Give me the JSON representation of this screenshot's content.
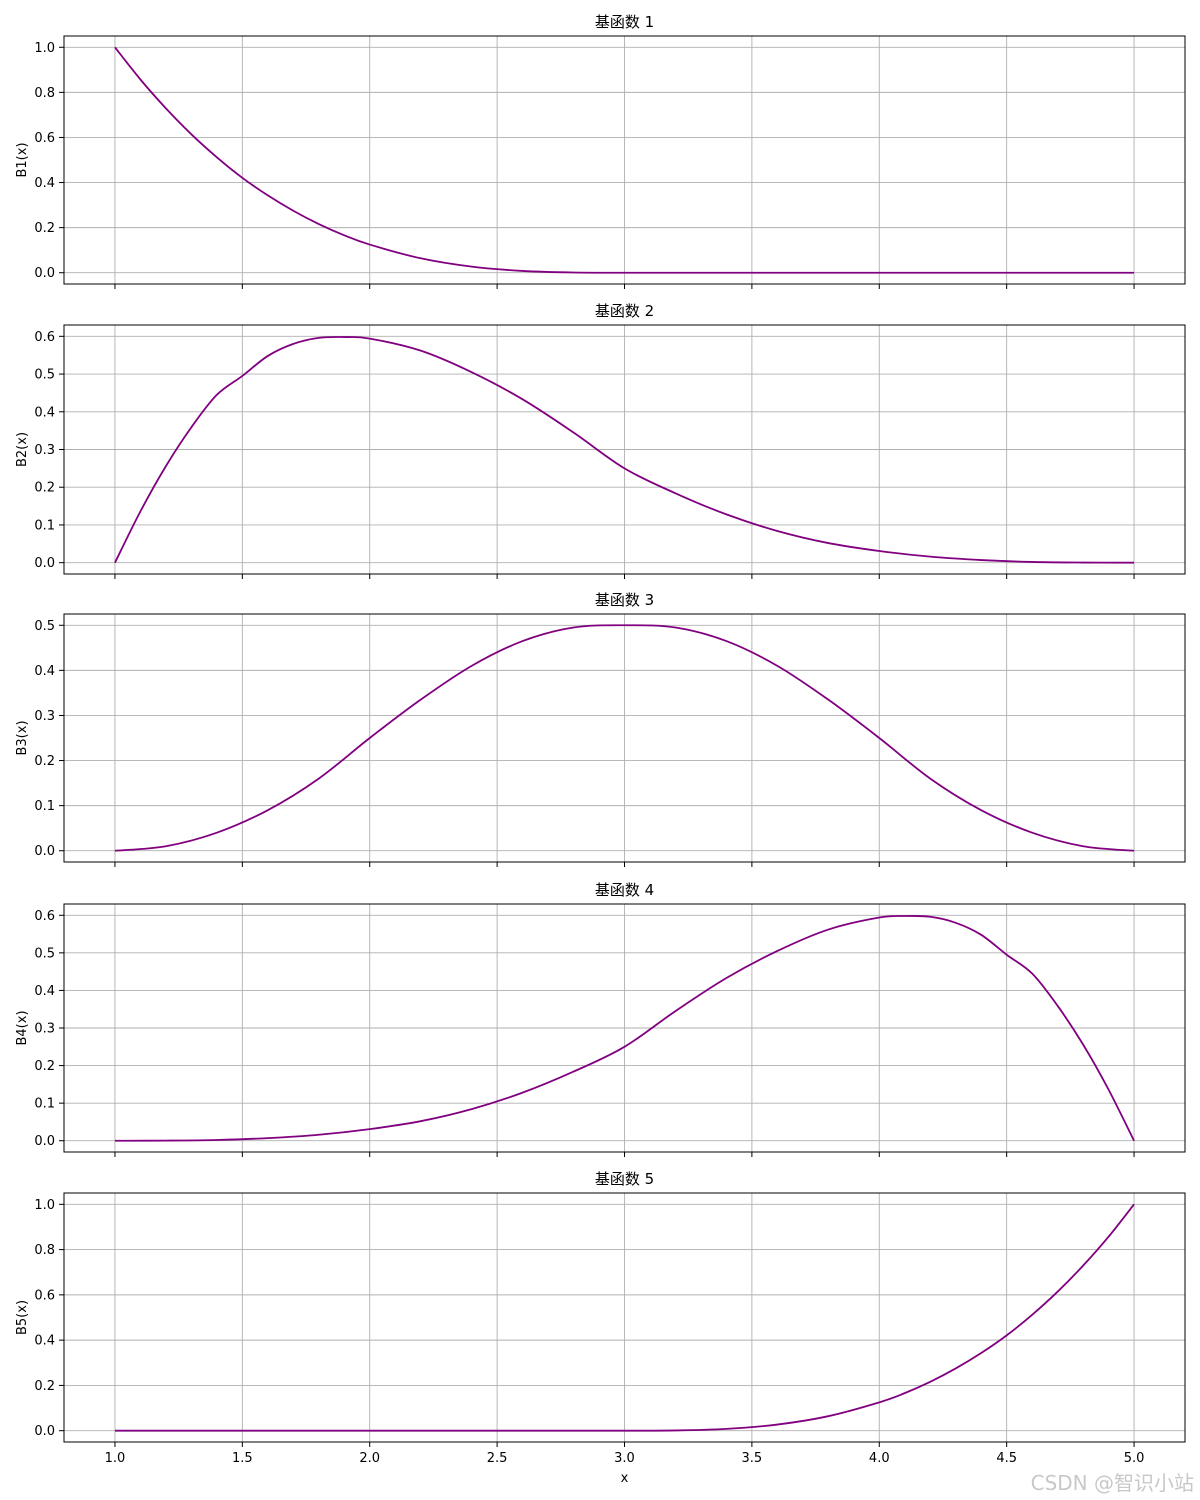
{
  "figure": {
    "xlabel": "x",
    "watermark": "CSDN @智识小站",
    "line_color": "#800080",
    "grid_color": "#b0b0b0"
  },
  "chart_data": [
    {
      "type": "line",
      "title": "基函数 1",
      "xlabel": "",
      "ylabel": "B1(x)",
      "xlim": [
        0.8,
        5.2
      ],
      "ylim": [
        -0.05,
        1.05
      ],
      "xticks": [
        1.0,
        1.5,
        2.0,
        2.5,
        3.0,
        3.5,
        4.0,
        4.5,
        5.0
      ],
      "xtick_labels_shown": false,
      "yticks": [
        0.0,
        0.2,
        0.4,
        0.6,
        0.8,
        1.0
      ],
      "ytick_labels": [
        "0.0",
        "0.2",
        "0.4",
        "0.6",
        "0.8",
        "1.0"
      ],
      "grid": true,
      "series": [
        {
          "color": "#800080",
          "x": [
            1.0,
            1.1,
            1.2,
            1.3,
            1.4,
            1.5,
            1.6,
            1.7,
            1.8,
            1.9,
            2.0,
            2.2,
            2.4,
            2.6,
            2.8,
            3.0,
            3.5,
            4.0,
            4.5,
            5.0
          ],
          "y": [
            1.0,
            0.857,
            0.729,
            0.614,
            0.512,
            0.421,
            0.343,
            0.275,
            0.216,
            0.166,
            0.125,
            0.064,
            0.027,
            0.008,
            0.001,
            0.0,
            0.0,
            0.0,
            0.0,
            0.0
          ]
        }
      ]
    },
    {
      "type": "line",
      "title": "基函数 2",
      "xlabel": "",
      "ylabel": "B2(x)",
      "xlim": [
        0.8,
        5.2
      ],
      "ylim": [
        -0.03,
        0.63
      ],
      "xticks": [
        1.0,
        1.5,
        2.0,
        2.5,
        3.0,
        3.5,
        4.0,
        4.5,
        5.0
      ],
      "xtick_labels_shown": false,
      "yticks": [
        0.0,
        0.1,
        0.2,
        0.3,
        0.4,
        0.5,
        0.6
      ],
      "ytick_labels": [
        "0.0",
        "0.1",
        "0.2",
        "0.3",
        "0.4",
        "0.5",
        "0.6"
      ],
      "grid": true,
      "series": [
        {
          "color": "#800080",
          "x": [
            1.0,
            1.1,
            1.2,
            1.3,
            1.4,
            1.5,
            1.6,
            1.7,
            1.8,
            1.9,
            2.0,
            2.2,
            2.4,
            2.6,
            2.8,
            3.0,
            3.2,
            3.4,
            3.6,
            3.8,
            4.0,
            4.2,
            4.4,
            4.6,
            4.8,
            5.0
          ],
          "y": [
            0.0,
            0.136,
            0.256,
            0.359,
            0.445,
            0.495,
            0.548,
            0.58,
            0.596,
            0.598,
            0.594,
            0.562,
            0.505,
            0.433,
            0.345,
            0.25,
            0.184,
            0.128,
            0.084,
            0.052,
            0.031,
            0.016,
            0.007,
            0.002,
            0.0003,
            0.0
          ]
        }
      ]
    },
    {
      "type": "line",
      "title": "基函数 3",
      "xlabel": "",
      "ylabel": "B3(x)",
      "xlim": [
        0.8,
        5.2
      ],
      "ylim": [
        -0.025,
        0.525
      ],
      "xticks": [
        1.0,
        1.5,
        2.0,
        2.5,
        3.0,
        3.5,
        4.0,
        4.5,
        5.0
      ],
      "xtick_labels_shown": false,
      "yticks": [
        0.0,
        0.1,
        0.2,
        0.3,
        0.4,
        0.5
      ],
      "ytick_labels": [
        "0.0",
        "0.1",
        "0.2",
        "0.3",
        "0.4",
        "0.5"
      ],
      "grid": true,
      "series": [
        {
          "color": "#800080",
          "x": [
            1.0,
            1.2,
            1.4,
            1.6,
            1.8,
            2.0,
            2.2,
            2.4,
            2.6,
            2.8,
            3.0,
            3.2,
            3.4,
            3.6,
            3.8,
            4.0,
            4.2,
            4.4,
            4.6,
            4.8,
            5.0
          ],
          "y": [
            0.0,
            0.01,
            0.04,
            0.09,
            0.16,
            0.25,
            0.335,
            0.41,
            0.465,
            0.495,
            0.5,
            0.495,
            0.465,
            0.41,
            0.335,
            0.25,
            0.16,
            0.09,
            0.04,
            0.01,
            0.0
          ]
        }
      ]
    },
    {
      "type": "line",
      "title": "基函数 4",
      "xlabel": "",
      "ylabel": "B4(x)",
      "xlim": [
        0.8,
        5.2
      ],
      "ylim": [
        -0.03,
        0.63
      ],
      "xticks": [
        1.0,
        1.5,
        2.0,
        2.5,
        3.0,
        3.5,
        4.0,
        4.5,
        5.0
      ],
      "xtick_labels_shown": false,
      "yticks": [
        0.0,
        0.1,
        0.2,
        0.3,
        0.4,
        0.5,
        0.6
      ],
      "ytick_labels": [
        "0.0",
        "0.1",
        "0.2",
        "0.3",
        "0.4",
        "0.5",
        "0.6"
      ],
      "grid": true,
      "series": [
        {
          "color": "#800080",
          "x": [
            1.0,
            1.2,
            1.4,
            1.6,
            1.8,
            2.0,
            2.2,
            2.4,
            2.6,
            2.8,
            3.0,
            3.2,
            3.4,
            3.6,
            3.8,
            4.0,
            4.1,
            4.2,
            4.3,
            4.4,
            4.5,
            4.6,
            4.7,
            4.8,
            4.9,
            5.0
          ],
          "y": [
            0.0,
            0.0003,
            0.002,
            0.007,
            0.016,
            0.031,
            0.052,
            0.084,
            0.128,
            0.184,
            0.25,
            0.345,
            0.433,
            0.505,
            0.562,
            0.594,
            0.598,
            0.596,
            0.58,
            0.548,
            0.495,
            0.445,
            0.359,
            0.256,
            0.136,
            0.0
          ]
        }
      ]
    },
    {
      "type": "line",
      "title": "基函数 5",
      "xlabel": "x",
      "ylabel": "B5(x)",
      "xlim": [
        0.8,
        5.2
      ],
      "ylim": [
        -0.05,
        1.05
      ],
      "xticks": [
        1.0,
        1.5,
        2.0,
        2.5,
        3.0,
        3.5,
        4.0,
        4.5,
        5.0
      ],
      "xtick_labels": [
        "1.0",
        "1.5",
        "2.0",
        "2.5",
        "3.0",
        "3.5",
        "4.0",
        "4.5",
        "5.0"
      ],
      "xtick_labels_shown": true,
      "yticks": [
        0.0,
        0.2,
        0.4,
        0.6,
        0.8,
        1.0
      ],
      "ytick_labels": [
        "0.0",
        "0.2",
        "0.4",
        "0.6",
        "0.8",
        "1.0"
      ],
      "grid": true,
      "series": [
        {
          "color": "#800080",
          "x": [
            1.0,
            1.5,
            2.0,
            2.5,
            3.0,
            3.2,
            3.4,
            3.6,
            3.8,
            4.0,
            4.1,
            4.2,
            4.3,
            4.4,
            4.5,
            4.6,
            4.7,
            4.8,
            4.9,
            5.0
          ],
          "y": [
            0.0,
            0.0,
            0.0,
            0.0,
            0.0,
            0.001,
            0.008,
            0.027,
            0.064,
            0.125,
            0.166,
            0.216,
            0.275,
            0.343,
            0.421,
            0.512,
            0.614,
            0.729,
            0.857,
            1.0
          ]
        }
      ]
    }
  ]
}
